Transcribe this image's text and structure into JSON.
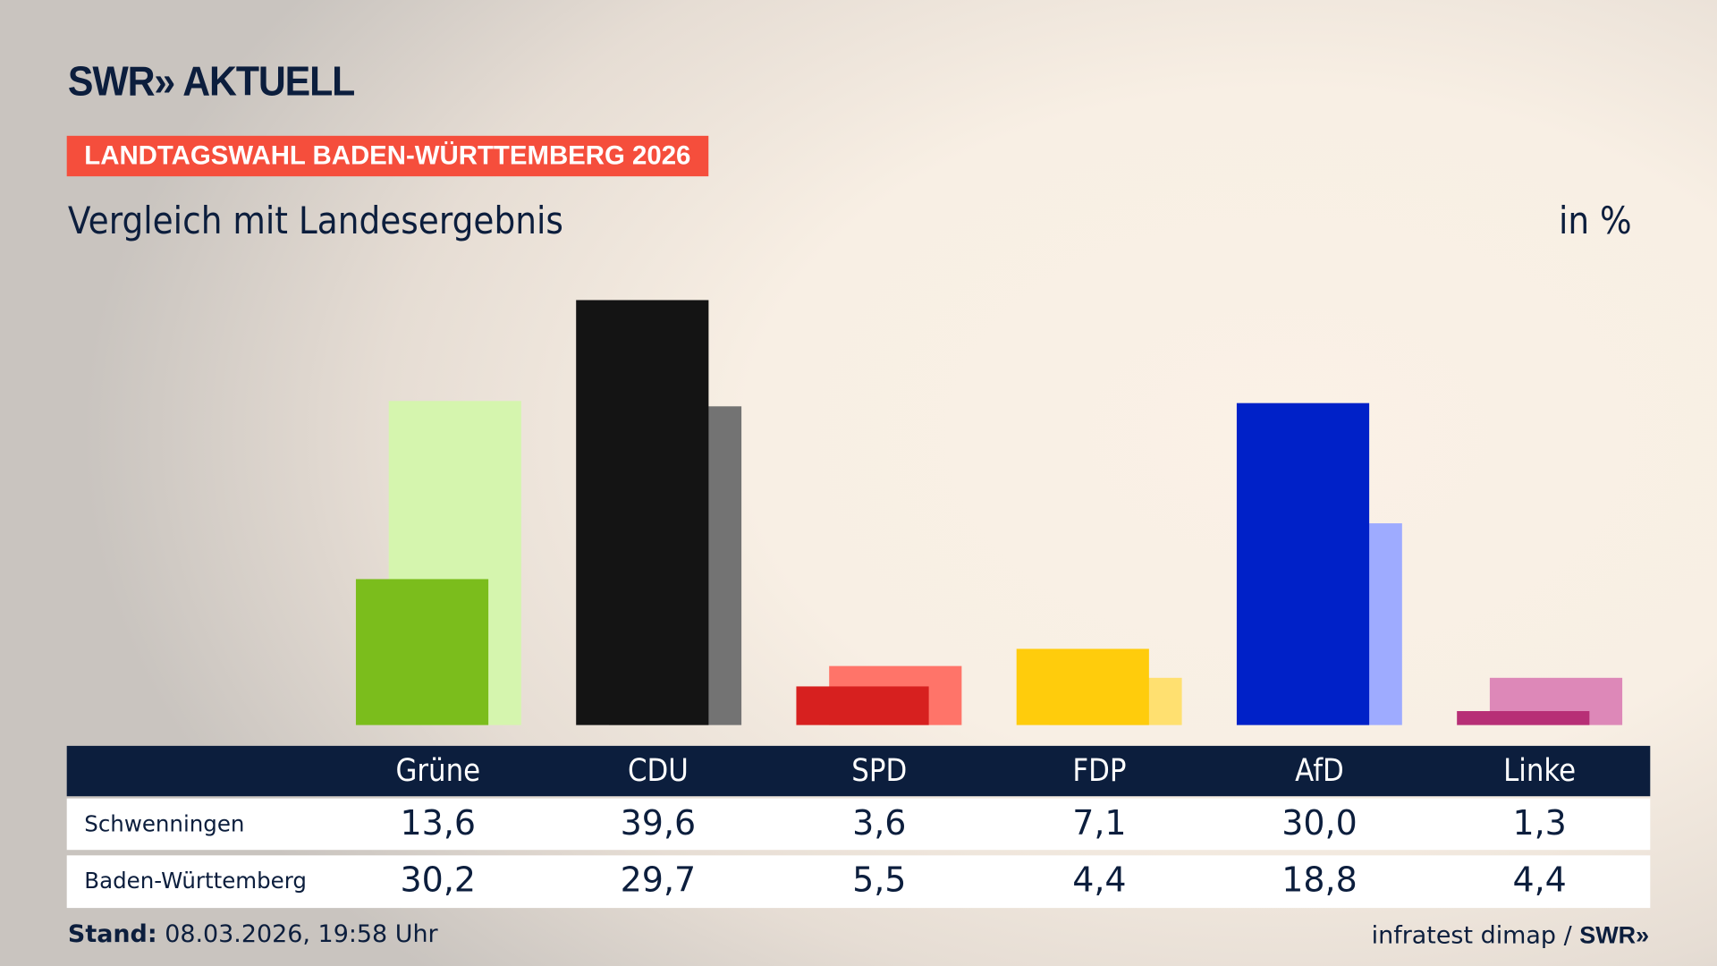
{
  "brand": {
    "logo": "SWR» AKTUELL",
    "banner": "LANDTAGSWAHL BADEN-WÜRTTEMBERG 2026"
  },
  "subtitle": "Vergleich mit Landesergebnis",
  "unit": "in %",
  "chart_data": {
    "type": "bar",
    "categories": [
      "Grüne",
      "CDU",
      "SPD",
      "FDP",
      "AfD",
      "Linke"
    ],
    "series": [
      {
        "name": "Schwenningen",
        "values": [
          13.6,
          39.6,
          3.6,
          7.1,
          30.0,
          1.3
        ],
        "colors": [
          "#7bbd1c",
          "#141414",
          "#d7201f",
          "#ffcc0c",
          "#0021c8",
          "#b72f76"
        ]
      },
      {
        "name": "Baden-Württemberg",
        "values": [
          30.2,
          29.7,
          5.5,
          4.4,
          18.8,
          4.4
        ],
        "colors": [
          "#d5f5ae",
          "#737373",
          "#ff7469",
          "#ffe070",
          "#9eabff",
          "#dd88b8"
        ]
      }
    ],
    "ylim": [
      0,
      40
    ],
    "grid": false
  },
  "table": {
    "headers": [
      "Grüne",
      "CDU",
      "SPD",
      "FDP",
      "AfD",
      "Linke"
    ],
    "rows": [
      {
        "label": "Schwenningen",
        "values": [
          "13,6",
          "39,6",
          "3,6",
          "7,1",
          "30,0",
          "1,3"
        ]
      },
      {
        "label": "Baden-Württemberg",
        "values": [
          "30,2",
          "29,7",
          "5,5",
          "4,4",
          "18,8",
          "4,4"
        ]
      }
    ]
  },
  "footer": {
    "stand_label": "Stand:",
    "stand_value": "08.03.2026, 19:58 Uhr",
    "source": "infratest dimap /",
    "source_logo": "SWR»"
  }
}
